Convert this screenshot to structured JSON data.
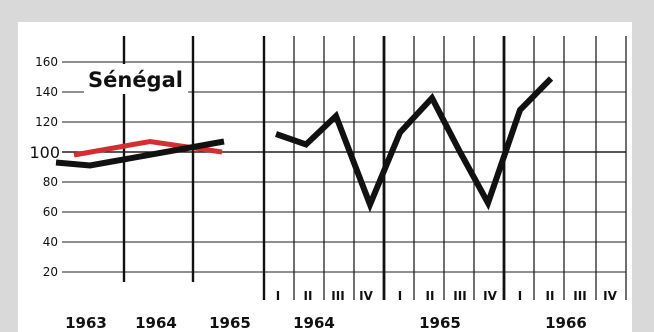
{
  "chart_data": [
    {
      "type": "line",
      "title": "Sénégal",
      "categories": [
        "1963",
        "1964",
        "1965"
      ],
      "y_ticks": [
        "160",
        "140",
        "120",
        "100",
        "80",
        "60",
        "40",
        "20"
      ],
      "ylim": [
        10,
        170
      ],
      "grid": true,
      "series": [
        {
          "color": "#111111",
          "values": [
            93,
            98,
            107
          ]
        },
        {
          "color": "#d32f2f",
          "values": [
            98,
            107,
            100
          ]
        }
      ]
    },
    {
      "type": "line",
      "title": "",
      "groups": [
        {
          "label": "1964",
          "quarters": [
            "I",
            "II",
            "III",
            "IV"
          ]
        },
        {
          "label": "1965",
          "quarters": [
            "I",
            "II",
            "III",
            "IV"
          ]
        },
        {
          "label": "1966",
          "quarters": [
            "I",
            "II",
            "III",
            "IV"
          ]
        }
      ],
      "ylim": [
        10,
        170
      ],
      "grid": true,
      "series": [
        {
          "color": "#111111",
          "values": [
            112,
            105,
            124,
            65,
            113,
            136,
            100,
            66,
            128,
            149,
            null,
            null
          ]
        }
      ]
    }
  ]
}
